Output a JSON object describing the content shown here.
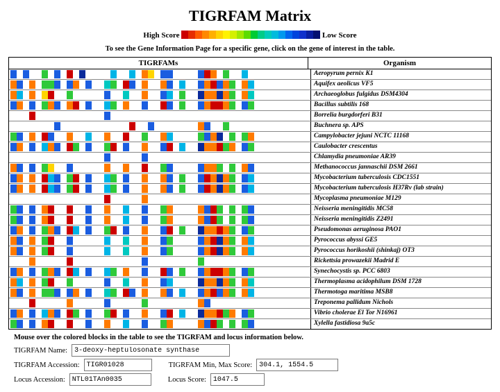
{
  "title": "TIGRFAM Matrix",
  "legend": {
    "high": "High Score",
    "low": "Low Score",
    "gradient": [
      "#cc0000",
      "#e62e00",
      "#ff5c00",
      "#ff8800",
      "#ffb000",
      "#ffd400",
      "#fff200",
      "#d4f000",
      "#a0e800",
      "#5cdc00",
      "#00cc33",
      "#00cc88",
      "#00ccbb",
      "#00bbdd",
      "#0099ee",
      "#0066ee",
      "#0044dd",
      "#1030cc",
      "#0a1ea0",
      "#041070"
    ]
  },
  "instruction": "To see the Gene Information Page for a specific gene, click on the gene of interest in the table.",
  "columns": {
    "left": "TIGRFAMs",
    "right": "Organism"
  },
  "footer_instruction": "Mouse over the colored blocks in the table to see the TIGRFAM and locus information below.",
  "info": {
    "name_label": "TIGRFAM Name:",
    "name_val": "3-deoxy-heptulosonate synthase",
    "acc_label": "TIGRFAM Accession:",
    "acc_val": "TIGR01028",
    "minmax_label": "TIGRFAM Min, Max Score:",
    "minmax_val": "304.1, 1554.5",
    "locus_acc_label": "Locus Accession:",
    "locus_acc_val": "NTL01TAn0035",
    "locus_score_label": "Locus Score:",
    "locus_score_val": "1047.5"
  },
  "palette": {
    "0": "#ffffff",
    "R": "#cc0000",
    "O": "#ff7a00",
    "Y": "#ffd400",
    "L": "#cde83a",
    "G": "#2fc93a",
    "T": "#00c8c0",
    "C": "#00b4e6",
    "B": "#1a5de0",
    "N": "#0a2a9a",
    "K": "#111111"
  },
  "rows": [
    {
      "org": "Aeropyrum pernix K1",
      "c": "B0B00G0B0R0N0000C00C0OY0BB0000BRO0G00C0000"
    },
    {
      "org": "Aquifex aeolicus VF5",
      "c": "OB0O0GGB0BO0B00TG0RB0O00OB0C00BORBOG0OC000"
    },
    {
      "org": "Archaeoglobus fulgidus DSM4304",
      "c": "OC0O0YR00G00000B00T00O00BC0G00NOONOG0OT000"
    },
    {
      "org": "Bacillus subtilis 168",
      "c": "BO0B0GOB0OR0B00CG0O00B00RB0G00BORROG0BG000"
    },
    {
      "org": "Borrelia burgdorferi B31",
      "c": "000R00000000000B00000000000000000000000000"
    },
    {
      "org": "Buchnera sp. APS",
      "c": "0000000B00000000000R00B0000000OB00G0000000"
    },
    {
      "org": "Campylobacter jejuni NCTC 11168",
      "c": "GB0O0RB00O00C00O00R00G00OC0000GBON0G0GO000"
    },
    {
      "org": "Caulobacter crescentus",
      "c": "BO0B0COB0RG0B00GR0B00O00BR0C00NOORGO0BG000"
    },
    {
      "org": "Chlamydia pneumoniae AR39",
      "c": "000000000000000B00000B00000000000000000000"
    },
    {
      "org": "Methanococcus jannaschii DSM 2661",
      "c": "OB0B0GY00B00000O00O00R00GB0000BOOG0G0OB000"
    },
    {
      "org": "Mycobacterium tuberculosis CDC1551",
      "c": "BO0O0RCB0GR0B00CG0B00O00OB0G00BRONOG0BC000"
    },
    {
      "org": "Mycobacterium tuberculosis H37Rv (lab strain)",
      "c": "BO0O0RCB0GR0B00CG0B00O00OB0G00BRONOG0BC000"
    },
    {
      "org": "Mycoplasma pneumoniae M129",
      "c": "000000000000000R00000O00000000000000000000"
    },
    {
      "org": "Neisseria meningitidis MC58",
      "c": "GB0B0OR00R00B00O00C00B00GO0000OBRG0G0GB000"
    },
    {
      "org": "Neisseria meningitidis Z2491",
      "c": "GB0B0OR00R00B00O00C00B00GO0000OBRG0G0GB000"
    },
    {
      "org": "Pseudomonas aeruginosa PAO1",
      "c": "BO0B0GOB0RC0B00GR0B00O00BR0G00NOOROG0BG000"
    },
    {
      "org": "Pyrococcus abyssi GE5",
      "c": "OB0O0GR00B00000C00T00O00BG0000BORNOG0OC000"
    },
    {
      "org": "Pyrococcus horikoshii (shinkaj) OT3",
      "c": "OB0O0GR00B00000C00T00O00BG0000BORNOG0OC000"
    },
    {
      "org": "Rickettsia prowazekii Madrid E",
      "c": "000O00000R00000000000B00000000G00000000000"
    },
    {
      "org": "Synechocystis sp. PCC 6803",
      "c": "BO0B0GOB0RC0B00CG0O00B00RB0G00BORROG0BG000"
    },
    {
      "org": "Thermoplasma acidophilum DSM 1728",
      "c": "OC0O0GR00G00000B00T00O00BC0000NOONOG0OT000"
    },
    {
      "org": "Thermotoga maritima MSB8",
      "c": "OB0O0GGB0BO0B00TG0RB0O00OB0C00BORBOG0OC000"
    },
    {
      "org": "Treponema pallidum Nichols",
      "c": "000R00000O00000B00000G00000000OB0000000000"
    },
    {
      "org": "Vibrio cholerae El Tor N16961",
      "c": "BO0B0COB0RG0B00GR0B00O00BR0C00NOORGO0BG000"
    },
    {
      "org": "Xylella fastidiosa 9a5c",
      "c": "GB0B0OR00R00B00O00C00B00GO0000OBRG0G0GB000"
    }
  ]
}
